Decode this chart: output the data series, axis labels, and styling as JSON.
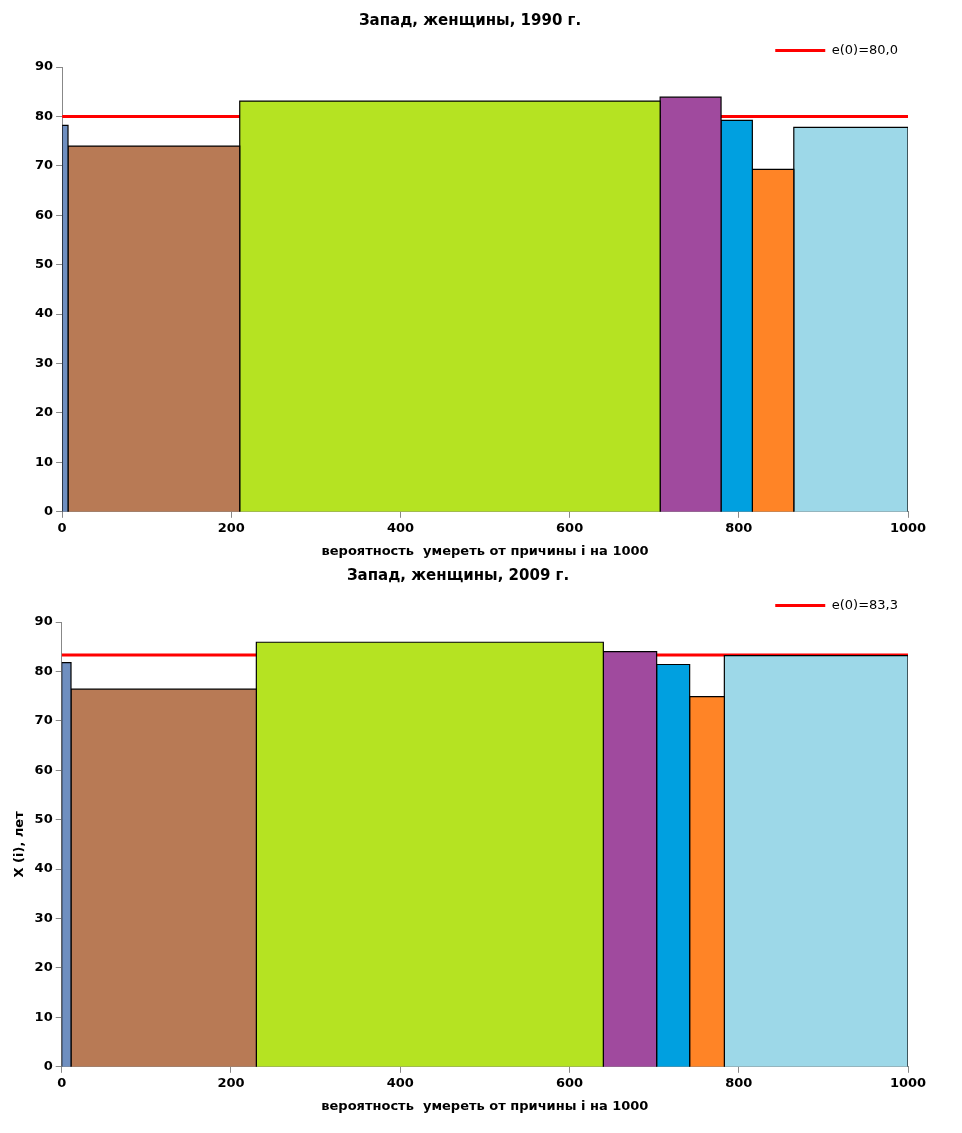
{
  "chart_data": [
    {
      "type": "histogram",
      "title": "Запад, женщины, 1990 г.",
      "xlabel": "вероятность  умереть от причины i на 1000",
      "bins": [
        0,
        7,
        210,
        707,
        779,
        816,
        865,
        1000
      ],
      "values": [
        78.2,
        74.0,
        83.1,
        83.9,
        79.2,
        69.3,
        77.8
      ],
      "colors": [
        "#6f8fc0",
        "#b87a55",
        "#b5e322",
        "#a04a9e",
        "#00a0e0",
        "#ff8426",
        "#9dd8e8"
      ],
      "ref_lines": [
        {
          "axis": "y",
          "value": 80.0,
          "label": "e(0)=80,0",
          "color": "#ff0000"
        }
      ],
      "legend": "top right",
      "xlim": [
        0,
        1000
      ],
      "xticks": [
        0,
        200,
        400,
        600,
        800,
        1000
      ],
      "ylim": [
        0,
        90
      ],
      "yticks": [
        0,
        10,
        20,
        30,
        40,
        50,
        60,
        70,
        80,
        90
      ]
    },
    {
      "type": "histogram",
      "title": "Запад, женщины, 2009 г.",
      "xlabel": "вероятность  умереть от причины i на 1000",
      "ylabel": "X (i), лет",
      "bins": [
        0,
        11,
        230,
        640,
        703,
        742,
        783,
        1000
      ],
      "values": [
        81.8,
        76.4,
        85.9,
        84.0,
        81.4,
        74.9,
        83.2
      ],
      "colors": [
        "#6f8fc0",
        "#b87a55",
        "#b5e322",
        "#a04a9e",
        "#00a0e0",
        "#ff8426",
        "#9dd8e8"
      ],
      "ref_lines": [
        {
          "axis": "y",
          "value": 83.3,
          "label": "e(0)=83,3",
          "color": "#ff0000"
        }
      ],
      "legend": "top right",
      "xlim": [
        0,
        1000
      ],
      "xticks": [
        0,
        200,
        400,
        600,
        800,
        1000
      ],
      "ylim": [
        0,
        90
      ],
      "yticks": [
        0,
        10,
        20,
        30,
        40,
        50,
        60,
        70,
        80,
        90
      ]
    }
  ]
}
